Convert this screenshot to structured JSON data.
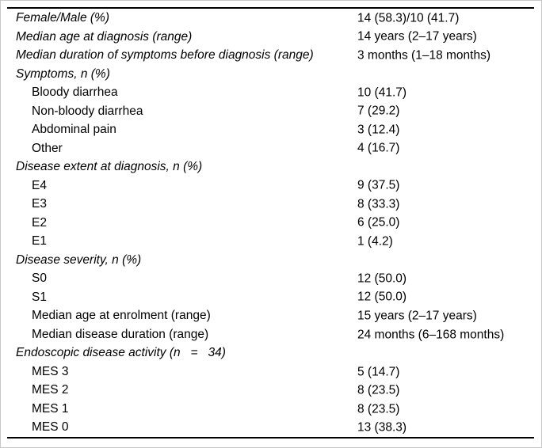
{
  "table": {
    "rows": [
      {
        "label": "Female/Male (%)",
        "value": "14 (58.3)/10 (41.7)"
      },
      {
        "label": "Median age at diagnosis (range)",
        "value": "14 years (2–17 years)"
      },
      {
        "label": "Median duration of symptoms before diagnosis (range)",
        "value": "3 months (1–18 months)"
      },
      {
        "label": "Symptoms, n (%)",
        "value": ""
      },
      {
        "label": "Bloody diarrhea",
        "value": "10 (41.7)"
      },
      {
        "label": "Non-bloody diarrhea",
        "value": "7 (29.2)"
      },
      {
        "label": "Abdominal pain",
        "value": "3 (12.4)"
      },
      {
        "label": "Other",
        "value": "4 (16.7)"
      },
      {
        "label": "Disease extent at diagnosis, n (%)",
        "value": ""
      },
      {
        "label": "E4",
        "value": "9 (37.5)"
      },
      {
        "label": "E3",
        "value": "8 (33.3)"
      },
      {
        "label": "E2",
        "value": "6 (25.0)"
      },
      {
        "label": "E1",
        "value": "1 (4.2)"
      },
      {
        "label": "Disease severity, n (%)",
        "value": ""
      },
      {
        "label": "S0",
        "value": "12 (50.0)"
      },
      {
        "label": "S1",
        "value": "12 (50.0)"
      },
      {
        "label": "Median age at enrolment (range)",
        "value": "15 years (2–17 years)"
      },
      {
        "label": "Median disease duration (range)",
        "value": "24 months (6–168 months)"
      },
      {
        "label": "Endoscopic disease activity (n   =   34)",
        "value": ""
      },
      {
        "label": "MES 3",
        "value": "5 (14.7)"
      },
      {
        "label": "MES 2",
        "value": "8 (23.5)"
      },
      {
        "label": "MES 1",
        "value": "8 (23.5)"
      },
      {
        "label": "MES 0",
        "value": "13 (38.3)"
      }
    ]
  },
  "colors": {
    "background": "#ffffff",
    "text": "#000000",
    "rule": "#000000",
    "frame": "#c9c9c9"
  }
}
